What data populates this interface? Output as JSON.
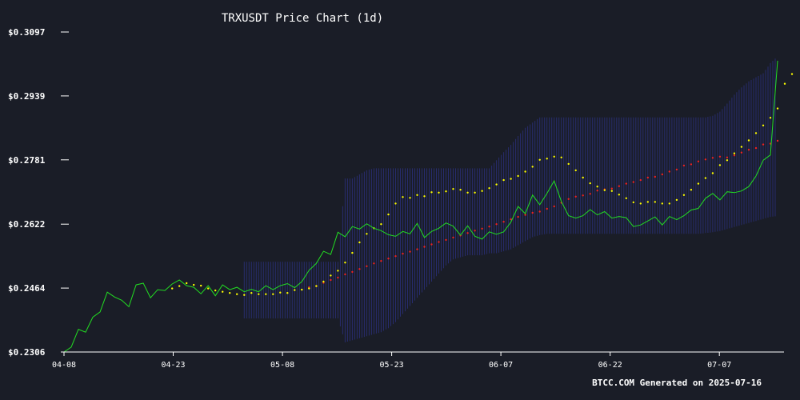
{
  "chart_data": {
    "type": "line",
    "title": "TRXUSDT Price Chart (1d)",
    "footer": "BTCC.COM Generated on 2025-07-16",
    "y_ticks": [
      "$0.3097",
      "$0.2939",
      "$0.2781",
      "$0.2622",
      "$0.2464",
      "$0.2306"
    ],
    "y_tick_values": [
      0.3097,
      0.2939,
      0.2781,
      0.2622,
      0.2464,
      0.2306
    ],
    "ylim": [
      0.2306,
      0.3097
    ],
    "x_ticks": [
      "04-08",
      "04-23",
      "05-08",
      "05-23",
      "06-07",
      "06-22",
      "07-07"
    ],
    "x_start": "2025-04-08",
    "x_end": "2025-07-15",
    "grid": false,
    "colors": {
      "background": "#1a1d27",
      "price": "#22dd22",
      "ma20": "#ffff00",
      "ma50": "#ee2222",
      "bands": "#2a2f7a"
    },
    "series": [
      {
        "key": "price",
        "style": "line",
        "values": [
          0.2306,
          0.2318,
          0.2362,
          0.2355,
          0.2392,
          0.2405,
          0.2454,
          0.2442,
          0.2434,
          0.2418,
          0.2472,
          0.2476,
          0.244,
          0.246,
          0.2458,
          0.2474,
          0.2484,
          0.247,
          0.2466,
          0.245,
          0.247,
          0.2445,
          0.2472,
          0.246,
          0.2466,
          0.2455,
          0.2461,
          0.2455,
          0.247,
          0.246,
          0.247,
          0.2475,
          0.2465,
          0.248,
          0.2508,
          0.2525,
          0.2555,
          0.2547,
          0.2602,
          0.2591,
          0.2616,
          0.261,
          0.2623,
          0.2612,
          0.2606,
          0.2596,
          0.2592,
          0.2604,
          0.2598,
          0.2624,
          0.2589,
          0.2604,
          0.2612,
          0.2625,
          0.2617,
          0.2595,
          0.2618,
          0.2592,
          0.2585,
          0.2603,
          0.2597,
          0.2603,
          0.2627,
          0.2666,
          0.2648,
          0.2694,
          0.267,
          0.2698,
          0.2729,
          0.2678,
          0.2643,
          0.2637,
          0.2643,
          0.2658,
          0.2645,
          0.2653,
          0.2637,
          0.2641,
          0.2638,
          0.2616,
          0.262,
          0.263,
          0.264,
          0.262,
          0.2641,
          0.2633,
          0.2643,
          0.2657,
          0.2661,
          0.2686,
          0.2698,
          0.2682,
          0.2702,
          0.27,
          0.2704,
          0.2715,
          0.2741,
          0.278,
          0.2793,
          0.3026
        ]
      },
      {
        "key": "ma20",
        "style": "dots",
        "values": [
          null,
          null,
          null,
          null,
          null,
          null,
          null,
          null,
          null,
          null,
          null,
          null,
          null,
          null,
          null,
          0.2463,
          0.2469,
          0.2476,
          0.2472,
          0.247,
          0.2463,
          0.2458,
          0.2455,
          0.2452,
          0.2449,
          0.2447,
          0.2452,
          0.2449,
          0.2449,
          0.2449,
          0.2453,
          0.2452,
          0.2459,
          0.246,
          0.2463,
          0.2469,
          0.248,
          0.2495,
          0.2507,
          0.2527,
          0.2551,
          0.2577,
          0.2598,
          0.2612,
          0.2622,
          0.2646,
          0.2673,
          0.2689,
          0.2687,
          0.2694,
          0.2691,
          0.2701,
          0.27,
          0.2703,
          0.2709,
          0.2707,
          0.27,
          0.27,
          0.2704,
          0.2711,
          0.272,
          0.2731,
          0.2734,
          0.2741,
          0.2752,
          0.2764,
          0.2781,
          0.2784,
          0.2789,
          0.2787,
          0.2771,
          0.2755,
          0.2737,
          0.2723,
          0.2715,
          0.2706,
          0.2704,
          0.2695,
          0.2686,
          0.2676,
          0.2673,
          0.2677,
          0.2677,
          0.2673,
          0.2673,
          0.2682,
          0.2694,
          0.2707,
          0.2722,
          0.2736,
          0.2748,
          0.2768,
          0.278,
          0.2797,
          0.2813,
          0.2829,
          0.2847,
          0.2866,
          0.2885,
          0.2908,
          0.2969,
          0.2993
        ]
      },
      {
        "key": "ma50",
        "style": "dots",
        "values": [
          null,
          null,
          null,
          null,
          null,
          null,
          null,
          null,
          null,
          null,
          null,
          null,
          null,
          null,
          null,
          null,
          null,
          null,
          null,
          null,
          null,
          null,
          null,
          null,
          null,
          null,
          null,
          null,
          null,
          null,
          null,
          null,
          null,
          null,
          0.2466,
          0.2469,
          0.2477,
          0.2484,
          0.249,
          0.2498,
          0.2504,
          0.2511,
          0.2518,
          0.2525,
          0.2531,
          0.2537,
          0.2543,
          0.2549,
          0.2554,
          0.256,
          0.2566,
          0.2572,
          0.2578,
          0.2583,
          0.2589,
          0.2594,
          0.26,
          0.2606,
          0.2611,
          0.2616,
          0.2622,
          0.2628,
          0.2634,
          0.264,
          0.2645,
          0.265,
          0.2653,
          0.266,
          0.2666,
          0.2675,
          0.2684,
          0.269,
          0.2693,
          0.2697,
          0.2705,
          0.2708,
          0.271,
          0.2716,
          0.2722,
          0.2726,
          0.2731,
          0.2737,
          0.2739,
          0.2745,
          0.2752,
          0.2757,
          0.2767,
          0.277,
          0.2777,
          0.2782,
          0.2786,
          0.2789,
          0.2787,
          0.2792,
          0.2799,
          0.2806,
          0.281,
          0.2819,
          0.2821,
          0.2828
        ]
      }
    ],
    "bands": {
      "upper": [
        null,
        null,
        null,
        null,
        null,
        null,
        null,
        null,
        null,
        null,
        null,
        null,
        null,
        null,
        null,
        null,
        null,
        null,
        null,
        null,
        null,
        null,
        null,
        null,
        null,
        0.2529,
        0.2529,
        0.2529,
        0.2529,
        0.2529,
        0.2529,
        0.2529,
        0.2529,
        0.2529,
        0.2529,
        0.2529,
        0.2529,
        0.2529,
        0.2529,
        0.2735,
        0.2735,
        0.2745,
        0.2755,
        0.276,
        0.276,
        0.276,
        0.276,
        0.276,
        0.276,
        0.276,
        0.276,
        0.276,
        0.276,
        0.276,
        0.276,
        0.276,
        0.276,
        0.276,
        0.276,
        0.276,
        0.278,
        0.28,
        0.2818,
        0.284,
        0.286,
        0.2873,
        0.2886,
        0.2886,
        0.2886,
        0.2886,
        0.2886,
        0.2886,
        0.2886,
        0.2886,
        0.2886,
        0.2886,
        0.2886,
        0.2886,
        0.2886,
        0.2886,
        0.2886,
        0.2886,
        0.2886,
        0.2886,
        0.2886,
        0.2886,
        0.2886,
        0.2886,
        0.2886,
        0.2886,
        0.289,
        0.29,
        0.292,
        0.2942,
        0.296,
        0.2975,
        0.2985,
        0.2995,
        0.302,
        0.3037
      ],
      "lower": [
        null,
        null,
        null,
        null,
        null,
        null,
        null,
        null,
        null,
        null,
        null,
        null,
        null,
        null,
        null,
        null,
        null,
        null,
        null,
        null,
        null,
        null,
        null,
        null,
        null,
        0.2389,
        0.2389,
        0.2389,
        0.2389,
        0.2389,
        0.2389,
        0.2389,
        0.2389,
        0.2389,
        0.2389,
        0.2389,
        0.2389,
        0.2389,
        0.2389,
        0.233,
        0.2335,
        0.234,
        0.2345,
        0.235,
        0.2355,
        0.2365,
        0.238,
        0.24,
        0.242,
        0.244,
        0.246,
        0.248,
        0.25,
        0.252,
        0.2535,
        0.254,
        0.2545,
        0.2545,
        0.2545,
        0.255,
        0.255,
        0.2555,
        0.256,
        0.257,
        0.258,
        0.259,
        0.2595,
        0.2598,
        0.2598,
        0.2598,
        0.2598,
        0.2598,
        0.2598,
        0.2598,
        0.2598,
        0.2598,
        0.2598,
        0.2598,
        0.2598,
        0.2598,
        0.2598,
        0.2598,
        0.2598,
        0.2598,
        0.2598,
        0.2598,
        0.2598,
        0.2598,
        0.2598,
        0.26,
        0.2602,
        0.2605,
        0.261,
        0.2615,
        0.262,
        0.2625,
        0.263,
        0.2635,
        0.264,
        0.2642
      ]
    }
  }
}
